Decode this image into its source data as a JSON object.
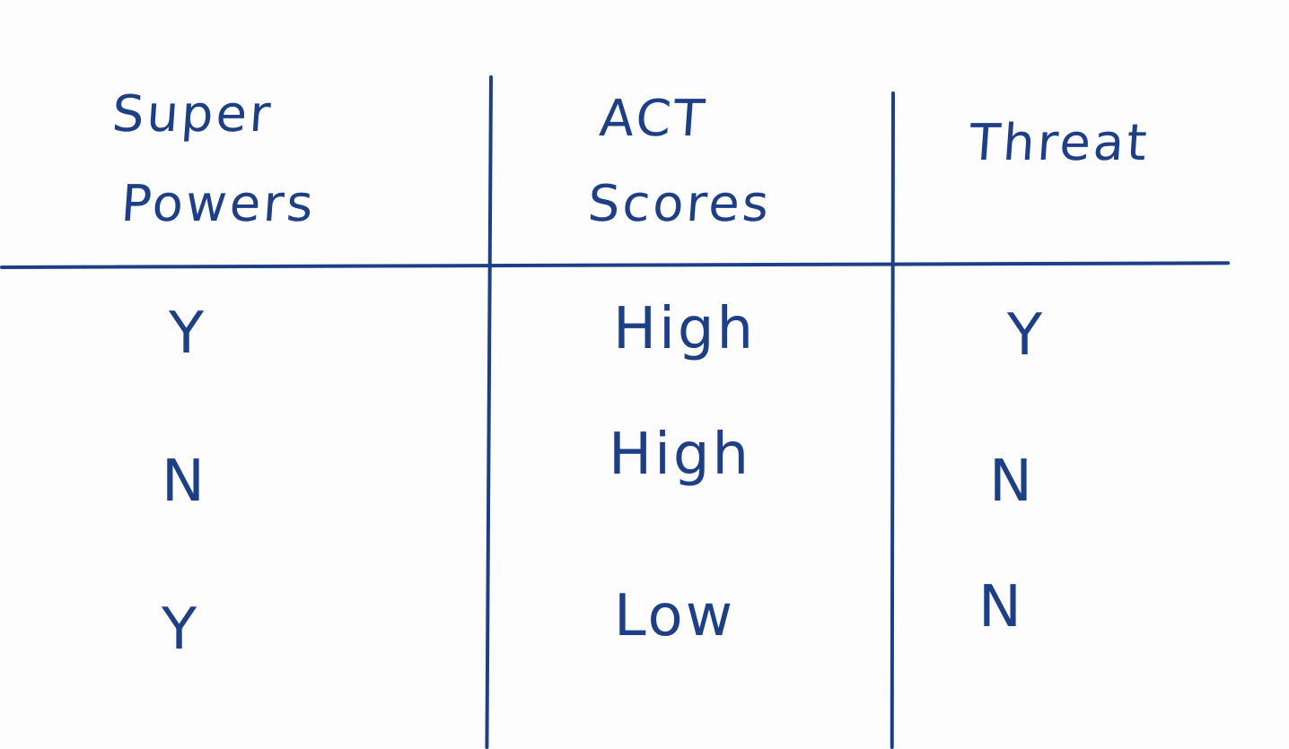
{
  "table": {
    "headers": [
      {
        "line1": "Super",
        "line2": "Powers"
      },
      {
        "line1": "ACT",
        "line2": "Scores"
      },
      {
        "line1": "Threat",
        "line2": ""
      }
    ],
    "rows": [
      [
        "Y",
        "High",
        "Y"
      ],
      [
        "N",
        "High",
        "N"
      ],
      [
        "Y",
        "Low",
        "N"
      ]
    ]
  },
  "colors": {
    "ink": "#1d3f86",
    "paper": "#fdfdfd"
  }
}
